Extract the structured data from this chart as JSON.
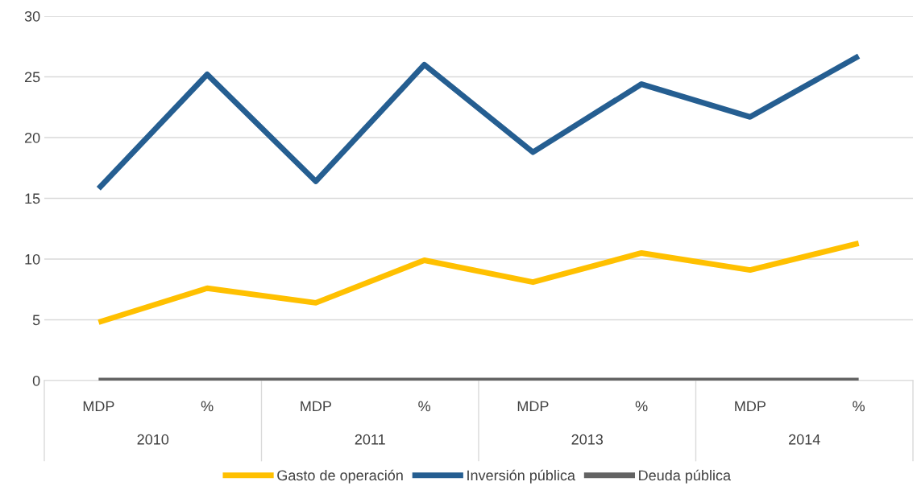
{
  "chart_data": {
    "type": "line",
    "categories": [
      "MDP",
      "%",
      "MDP",
      "%",
      "MDP",
      "%",
      "MDP",
      "%"
    ],
    "annotations": [
      "2010",
      "2011",
      "2013",
      "2014"
    ],
    "series": [
      {
        "name": "Gasto de operación",
        "color": "#ffc000",
        "values": [
          4.8,
          7.6,
          6.4,
          9.9,
          8.1,
          10.5,
          9.1,
          11.3
        ]
      },
      {
        "name": "Inversión pública",
        "color": "#255e91",
        "values": [
          15.8,
          25.2,
          16.4,
          26.0,
          18.8,
          24.4,
          21.7,
          26.7
        ]
      },
      {
        "name": "Deuda pública",
        "color": "#636363",
        "values": [
          0,
          0,
          0,
          0,
          0,
          0,
          0,
          0
        ]
      }
    ],
    "ylim": [
      0,
      30
    ],
    "yticks": [
      0,
      5,
      10,
      15,
      20,
      25,
      30
    ],
    "grid": "y",
    "legend": "bottom",
    "marker": "none",
    "line_style": "solid"
  }
}
